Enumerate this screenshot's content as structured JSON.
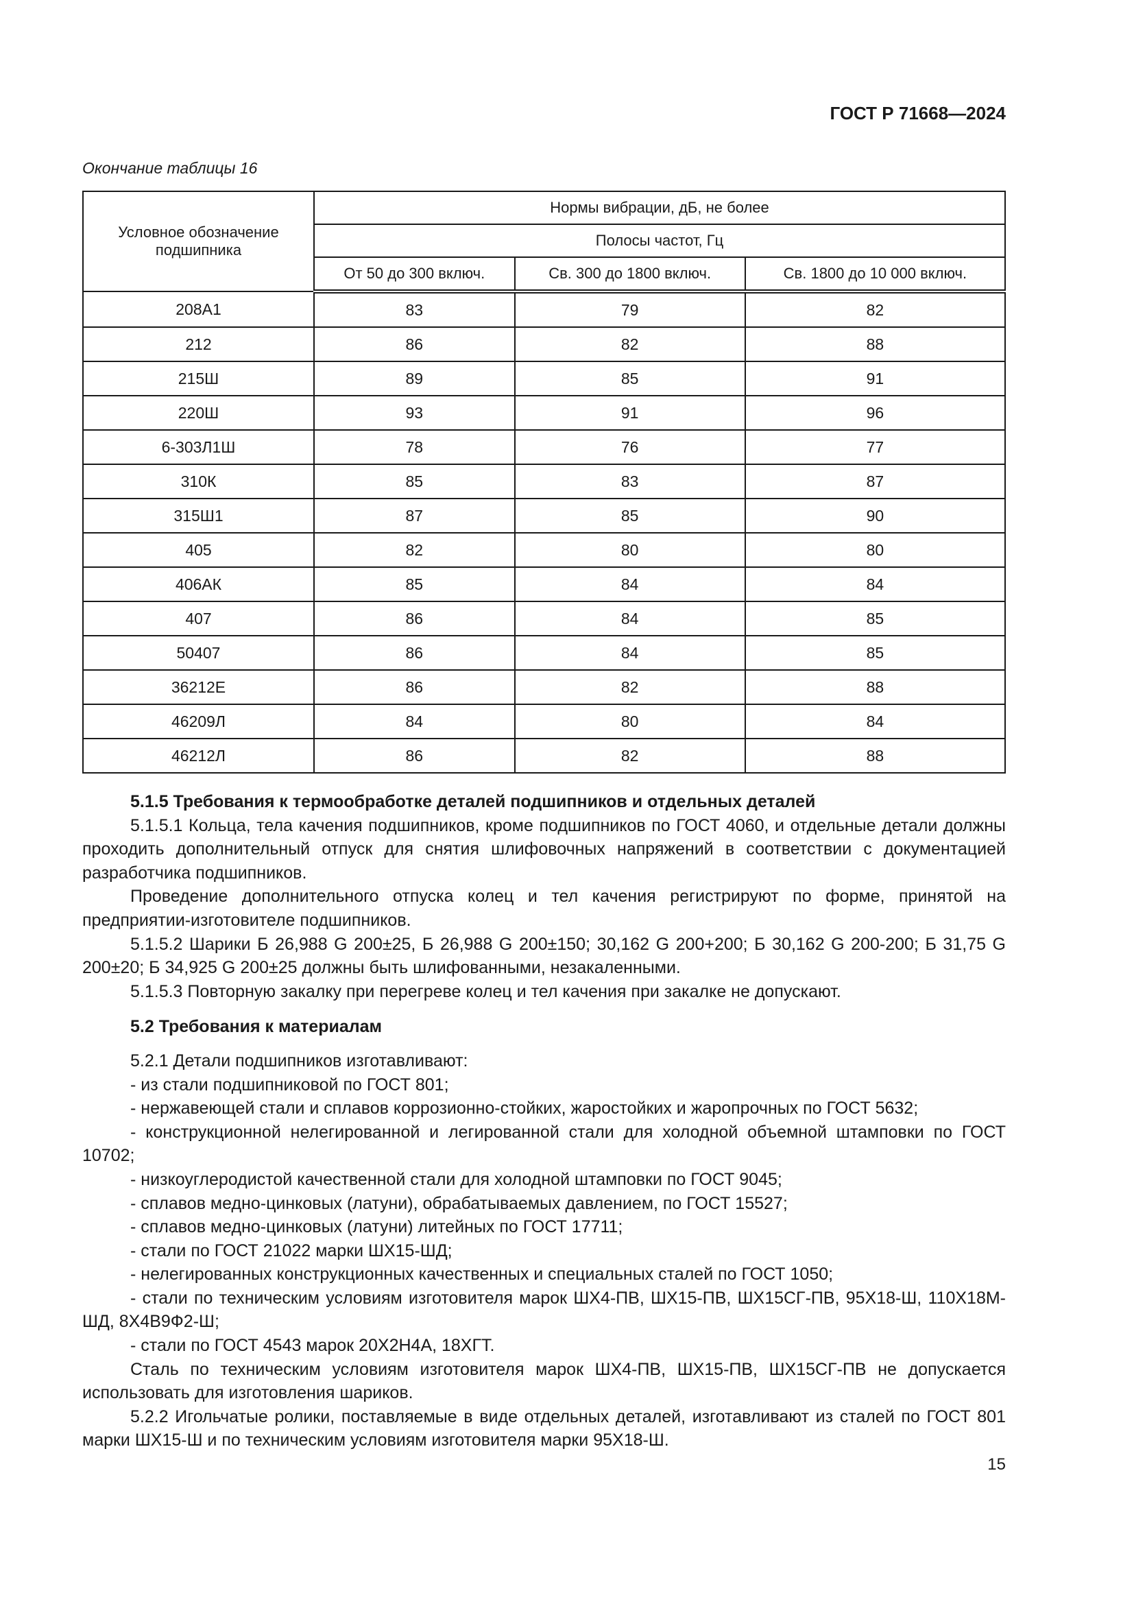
{
  "header": {
    "doc_id": "ГОСТ Р 71668—2024"
  },
  "table": {
    "caption": "Окончание таблицы 16",
    "col_designation": "Условное обозначение подшипника",
    "group_header": "Нормы вибрации, дБ, не более",
    "sub_header": "Полосы частот, Гц",
    "bands": [
      "От 50 до 300 включ.",
      "Св. 300 до 1800 включ.",
      "Св. 1800 до 10 000 включ."
    ],
    "rows": [
      [
        "208А1",
        "83",
        "79",
        "82"
      ],
      [
        "212",
        "86",
        "82",
        "88"
      ],
      [
        "215Ш",
        "89",
        "85",
        "91"
      ],
      [
        "220Ш",
        "93",
        "91",
        "96"
      ],
      [
        "6-303Л1Ш",
        "78",
        "76",
        "77"
      ],
      [
        "310К",
        "85",
        "83",
        "87"
      ],
      [
        "315Ш1",
        "87",
        "85",
        "90"
      ],
      [
        "405",
        "82",
        "80",
        "80"
      ],
      [
        "406АК",
        "85",
        "84",
        "84"
      ],
      [
        "407",
        "86",
        "84",
        "85"
      ],
      [
        "50407",
        "86",
        "84",
        "85"
      ],
      [
        "36212Е",
        "86",
        "82",
        "88"
      ],
      [
        "46209Л",
        "84",
        "80",
        "84"
      ],
      [
        "46212Л",
        "86",
        "82",
        "88"
      ]
    ]
  },
  "paragraphs": [
    {
      "t": "5.1.5 Требования к термообработке деталей подшипников и отдельных деталей",
      "c": "h"
    },
    {
      "t": "5.1.5.1 Кольца, тела качения подшипников, кроме подшипников по ГОСТ 4060, и отдельные детали должны проходить дополнительный отпуск для снятия шлифовочных напряжений в соответствии с документацией разработчика подшипников.",
      "c": ""
    },
    {
      "t": "Проведение дополнительного отпуска колец и тел качения регистрируют по форме, принятой на предприятии-изготовителе подшипников.",
      "c": ""
    },
    {
      "t": "5.1.5.2 Шарики Б 26,988 G 200±25, Б 26,988 G 200±150; 30,162 G 200+200; Б 30,162 G 200-200; Б 31,75 G 200±20; Б 34,925 G 200±25 должны быть шлифованными, незакаленными.",
      "c": ""
    },
    {
      "t": "5.1.5.3 Повторную закалку при перегреве колец и тел качения при закалке не допускают.",
      "c": ""
    },
    {
      "t": "5.2 Требования к материалам",
      "c": "h gap"
    },
    {
      "t": "5.2.1 Детали подшипников изготавливают:",
      "c": "gap2"
    },
    {
      "t": "- из стали подшипниковой по ГОСТ 801;",
      "c": ""
    },
    {
      "t": "- нержавеющей стали и сплавов коррозионно-стойких, жаростойких и жаропрочных по ГОСТ 5632;",
      "c": ""
    },
    {
      "t": "- конструкционной нелегированной и легированной стали для холодной объемной штамповки по ГОСТ 10702;",
      "c": ""
    },
    {
      "t": "- низкоуглеродистой качественной стали для холодной штамповки по ГОСТ 9045;",
      "c": ""
    },
    {
      "t": "- сплавов медно-цинковых (латуни), обрабатываемых давлением, по ГОСТ 15527;",
      "c": ""
    },
    {
      "t": "- сплавов медно-цинковых (латуни) литейных по ГОСТ 17711;",
      "c": ""
    },
    {
      "t": "- стали по ГОСТ 21022 марки ШХ15-ШД;",
      "c": ""
    },
    {
      "t": "- нелегированных конструкционных качественных и специальных сталей по ГОСТ 1050;",
      "c": ""
    },
    {
      "t": "- стали по техническим условиям изготовителя марок ШХ4-ПВ, ШХ15-ПВ, ШХ15СГ-ПВ, 95Х18-Ш, 110Х18М-ШД, 8Х4В9Ф2-Ш;",
      "c": ""
    },
    {
      "t": "- стали по ГОСТ 4543 марок 20Х2Н4А, 18ХГТ.",
      "c": ""
    },
    {
      "t": "Сталь по техническим условиям изготовителя марок ШХ4-ПВ, ШХ15-ПВ, ШХ15СГ-ПВ не допускается использовать для изготовления шариков.",
      "c": ""
    },
    {
      "t": "5.2.2 Игольчатые ролики, поставляемые в виде отдельных деталей, изготавливают из сталей по ГОСТ 801 марки ШХ15-Ш и по техническим условиям изготовителя марки 95Х18-Ш.",
      "c": ""
    }
  ],
  "footer": {
    "page_number": "15"
  }
}
